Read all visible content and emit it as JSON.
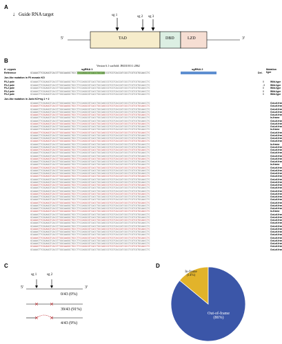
{
  "panelA": {
    "letter": "A",
    "legend": "Guide RNA target",
    "sg1": "sg 1",
    "sg2": "sg 2",
    "sg3": "sg 3",
    "five": "5'",
    "three": "3'",
    "tad": "TAD",
    "dbd": "DBD",
    "lzd": "LZD",
    "colors": {
      "tad": "#f6eccb",
      "dbd": "#dcefe3",
      "lzd": "#f6ded3"
    }
  },
  "panelB": {
    "letter": "B",
    "version": "Version 6.1 scaffold: JH431010.1:2862",
    "sgRNA1": "sgRNA 1",
    "sgRNA2": "sgRNA 2",
    "col_species": "K. crypsis",
    "col_ref": "Reference",
    "col_del": "Del.",
    "col_mut": "Mutation type",
    "section1": "Jun-like mutation in F0 mosaic KO",
    "section2": "Jun-like mutation in Junb KO+ng 1 + 2",
    "ref_seq": "GCAAAGTTCGGAGGTCACCTTGGCAAGGCTGCCTTCCAGGCGTCACCTGCCAGCCGTCGTCACCATCGCCTCGTCGTGCAACCTC",
    "wt_label": "Wild-type",
    "oof": "Out-of-frame",
    "inf": "In-frame",
    "rows": [
      {
        "nm": "F0-2 pole",
        "del": "0",
        "ty": "Wild-type"
      },
      {
        "nm": "F0-2 pole",
        "del": "-3",
        "ty": "Wild-type"
      },
      {
        "nm": "F0-2 pole",
        "del": "0",
        "ty": "Wild-type"
      },
      {
        "nm": "F0-2 pole",
        "del": "0",
        "ty": "Wild-type"
      },
      {
        "nm": "F0-2 pole",
        "del": "0",
        "ty": "Wild-type"
      }
    ]
  },
  "panelC": {
    "letter": "C",
    "sg1": "sg 1",
    "sg2": "sg 2",
    "five": "5'",
    "three": "3'",
    "r1": "0/43 (0%)",
    "r2": "39/43 (91%)",
    "r3": "4/43 (9%)"
  },
  "panelD": {
    "letter": "D",
    "inframe_label": "In-frame",
    "inframe_pct": "(14%)",
    "oof_label": "Out-of-frame",
    "oof_pct": "(86%)",
    "chart_data": {
      "type": "pie",
      "categories": [
        "Out-of-frame",
        "In-frame"
      ],
      "values": [
        86,
        14
      ],
      "colors": [
        "#3b56a8",
        "#e2b32a"
      ]
    }
  }
}
